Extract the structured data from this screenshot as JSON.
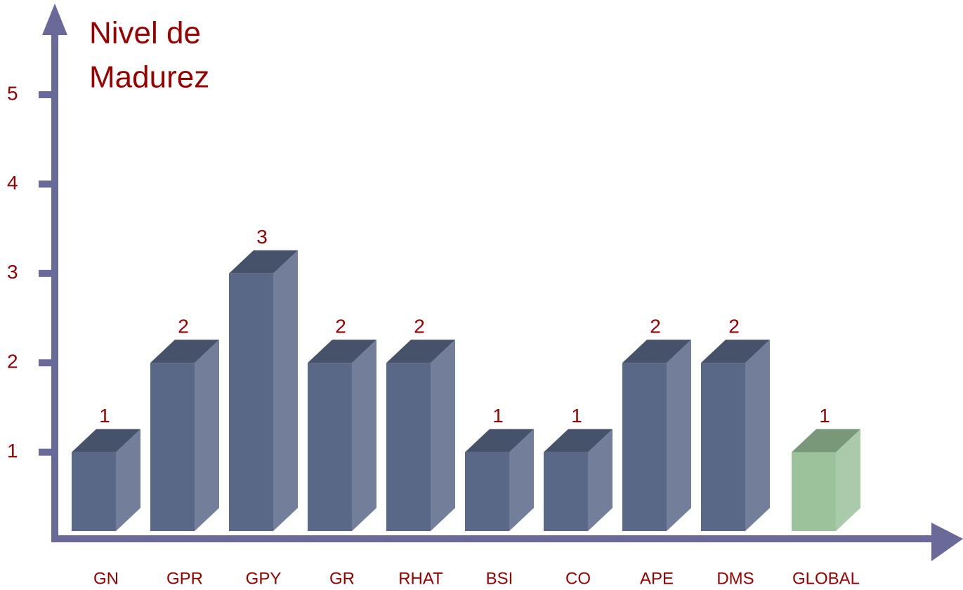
{
  "chart_data": {
    "type": "bar3d",
    "ylabel": [
      "Nivel de",
      "Madurez"
    ],
    "categories": [
      "GN",
      "GPR",
      "GPY",
      "GR",
      "RHAT",
      "BSI",
      "CO",
      "APE",
      "DMS",
      "GLOBAL"
    ],
    "values": [
      1,
      2,
      3,
      2,
      2,
      1,
      1,
      2,
      2,
      1
    ],
    "colors": [
      "#5a6888",
      "#5a6888",
      "#5a6888",
      "#5a6888",
      "#5a6888",
      "#5a6888",
      "#5a6888",
      "#5a6888",
      "#5a6888",
      "#9bc29b"
    ],
    "ylim": [
      0,
      5
    ],
    "yticks": [
      1,
      2,
      3,
      4,
      5
    ]
  }
}
